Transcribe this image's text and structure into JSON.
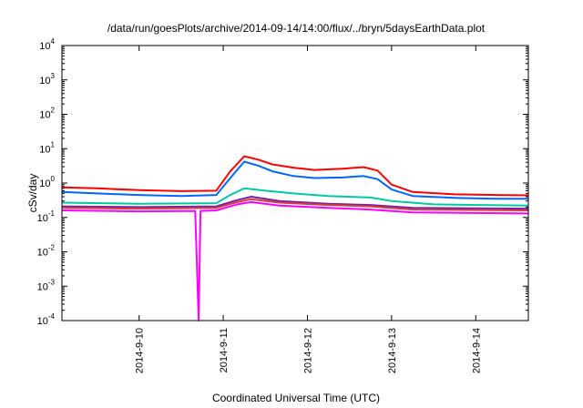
{
  "chart_data": {
    "type": "line",
    "title": "/data/run/goesPlots/archive/2014-09-14/14:00/flux/../bryn/5daysEarthData.plot",
    "xlabel": "Coordinated Universal Time (UTC)",
    "ylabel": "cSv/day",
    "yscale": "log",
    "ylim": [
      0.0001,
      10000
    ],
    "xlim": [
      "2014-09-09 02:00",
      "2014-09-14 15:00"
    ],
    "y_ticks": [
      {
        "base": "10",
        "exp": "-4",
        "value": 0.0001
      },
      {
        "base": "10",
        "exp": "-3",
        "value": 0.001
      },
      {
        "base": "10",
        "exp": "-2",
        "value": 0.01
      },
      {
        "base": "10",
        "exp": "-1",
        "value": 0.1
      },
      {
        "base": "10",
        "exp": "0",
        "value": 1
      },
      {
        "base": "10",
        "exp": "1",
        "value": 10
      },
      {
        "base": "10",
        "exp": "2",
        "value": 100
      },
      {
        "base": "10",
        "exp": "3",
        "value": 1000
      },
      {
        "base": "10",
        "exp": "4",
        "value": 10000
      }
    ],
    "x_ticks": [
      {
        "label": "2014-9-10",
        "value": "2014-09-10 00:00"
      },
      {
        "label": "2014-9-11",
        "value": "2014-09-11 00:00"
      },
      {
        "label": "2014-9-12",
        "value": "2014-09-12 00:00"
      },
      {
        "label": "2014-9-13",
        "value": "2014-09-13 00:00"
      },
      {
        "label": "2014-9-14",
        "value": "2014-09-14 00:00"
      }
    ],
    "grid": false,
    "legend": "none",
    "series": [
      {
        "color": "#ff0000",
        "points": [
          [
            "2014-09-09 02:00",
            0.75
          ],
          [
            "2014-09-09 12:00",
            0.7
          ],
          [
            "2014-09-10 00:00",
            0.62
          ],
          [
            "2014-09-10 12:00",
            0.58
          ],
          [
            "2014-09-10 22:00",
            0.6
          ],
          [
            "2014-09-11 02:00",
            2.2
          ],
          [
            "2014-09-11 06:00",
            6.0
          ],
          [
            "2014-09-11 10:00",
            4.8
          ],
          [
            "2014-09-11 14:00",
            3.5
          ],
          [
            "2014-09-11 20:00",
            2.8
          ],
          [
            "2014-09-12 02:00",
            2.4
          ],
          [
            "2014-09-12 10:00",
            2.6
          ],
          [
            "2014-09-12 16:00",
            2.9
          ],
          [
            "2014-09-12 20:00",
            2.3
          ],
          [
            "2014-09-13 00:00",
            0.9
          ],
          [
            "2014-09-13 06:00",
            0.55
          ],
          [
            "2014-09-13 18:00",
            0.47
          ],
          [
            "2014-09-14 06:00",
            0.45
          ],
          [
            "2014-09-14 15:00",
            0.44
          ]
        ]
      },
      {
        "color": "#0066ff",
        "points": [
          [
            "2014-09-09 02:00",
            0.55
          ],
          [
            "2014-09-09 12:00",
            0.5
          ],
          [
            "2014-09-10 00:00",
            0.45
          ],
          [
            "2014-09-10 12:00",
            0.42
          ],
          [
            "2014-09-10 22:00",
            0.45
          ],
          [
            "2014-09-11 02:00",
            1.4
          ],
          [
            "2014-09-11 06:00",
            4.2
          ],
          [
            "2014-09-11 10:00",
            3.2
          ],
          [
            "2014-09-11 14:00",
            2.2
          ],
          [
            "2014-09-11 20:00",
            1.6
          ],
          [
            "2014-09-12 02:00",
            1.4
          ],
          [
            "2014-09-12 10:00",
            1.45
          ],
          [
            "2014-09-12 16:00",
            1.6
          ],
          [
            "2014-09-12 20:00",
            1.3
          ],
          [
            "2014-09-13 00:00",
            0.65
          ],
          [
            "2014-09-13 06:00",
            0.42
          ],
          [
            "2014-09-13 18:00",
            0.37
          ],
          [
            "2014-09-14 06:00",
            0.35
          ],
          [
            "2014-09-14 15:00",
            0.35
          ]
        ]
      },
      {
        "color": "#00c8a0",
        "points": [
          [
            "2014-09-09 02:00",
            0.27
          ],
          [
            "2014-09-10 00:00",
            0.25
          ],
          [
            "2014-09-10 22:00",
            0.26
          ],
          [
            "2014-09-11 02:00",
            0.45
          ],
          [
            "2014-09-11 06:00",
            0.7
          ],
          [
            "2014-09-11 12:00",
            0.6
          ],
          [
            "2014-09-11 20:00",
            0.5
          ],
          [
            "2014-09-12 06:00",
            0.42
          ],
          [
            "2014-09-12 18:00",
            0.38
          ],
          [
            "2014-09-13 00:00",
            0.3
          ],
          [
            "2014-09-13 12:00",
            0.24
          ],
          [
            "2014-09-14 15:00",
            0.22
          ]
        ]
      },
      {
        "color": "#7b1fa2",
        "points": [
          [
            "2014-09-09 02:00",
            0.21
          ],
          [
            "2014-09-10 00:00",
            0.2
          ],
          [
            "2014-09-10 22:00",
            0.21
          ],
          [
            "2014-09-11 04:00",
            0.32
          ],
          [
            "2014-09-11 08:00",
            0.4
          ],
          [
            "2014-09-11 16:00",
            0.3
          ],
          [
            "2014-09-12 06:00",
            0.25
          ],
          [
            "2014-09-12 18:00",
            0.23
          ],
          [
            "2014-09-13 06:00",
            0.19
          ],
          [
            "2014-09-14 15:00",
            0.18
          ]
        ]
      },
      {
        "color": "#d04040",
        "points": [
          [
            "2014-09-09 02:00",
            0.19
          ],
          [
            "2014-09-10 00:00",
            0.18
          ],
          [
            "2014-09-10 22:00",
            0.19
          ],
          [
            "2014-09-11 04:00",
            0.28
          ],
          [
            "2014-09-11 08:00",
            0.34
          ],
          [
            "2014-09-11 16:00",
            0.27
          ],
          [
            "2014-09-12 06:00",
            0.23
          ],
          [
            "2014-09-12 18:00",
            0.21
          ],
          [
            "2014-09-13 06:00",
            0.17
          ],
          [
            "2014-09-14 15:00",
            0.16
          ]
        ]
      },
      {
        "color": "#ff00ff",
        "points": [
          [
            "2014-09-09 02:00",
            0.16
          ],
          [
            "2014-09-10 00:00",
            0.15
          ],
          [
            "2014-09-10 16:00",
            0.155
          ],
          [
            "2014-09-10 17:00",
            0.0001
          ],
          [
            "2014-09-10 17:30",
            0.155
          ],
          [
            "2014-09-10 22:00",
            0.16
          ],
          [
            "2014-09-11 04:00",
            0.24
          ],
          [
            "2014-09-11 08:00",
            0.28
          ],
          [
            "2014-09-11 16:00",
            0.22
          ],
          [
            "2014-09-12 06:00",
            0.19
          ],
          [
            "2014-09-12 18:00",
            0.17
          ],
          [
            "2014-09-13 06:00",
            0.14
          ],
          [
            "2014-09-14 15:00",
            0.13
          ]
        ]
      }
    ]
  }
}
